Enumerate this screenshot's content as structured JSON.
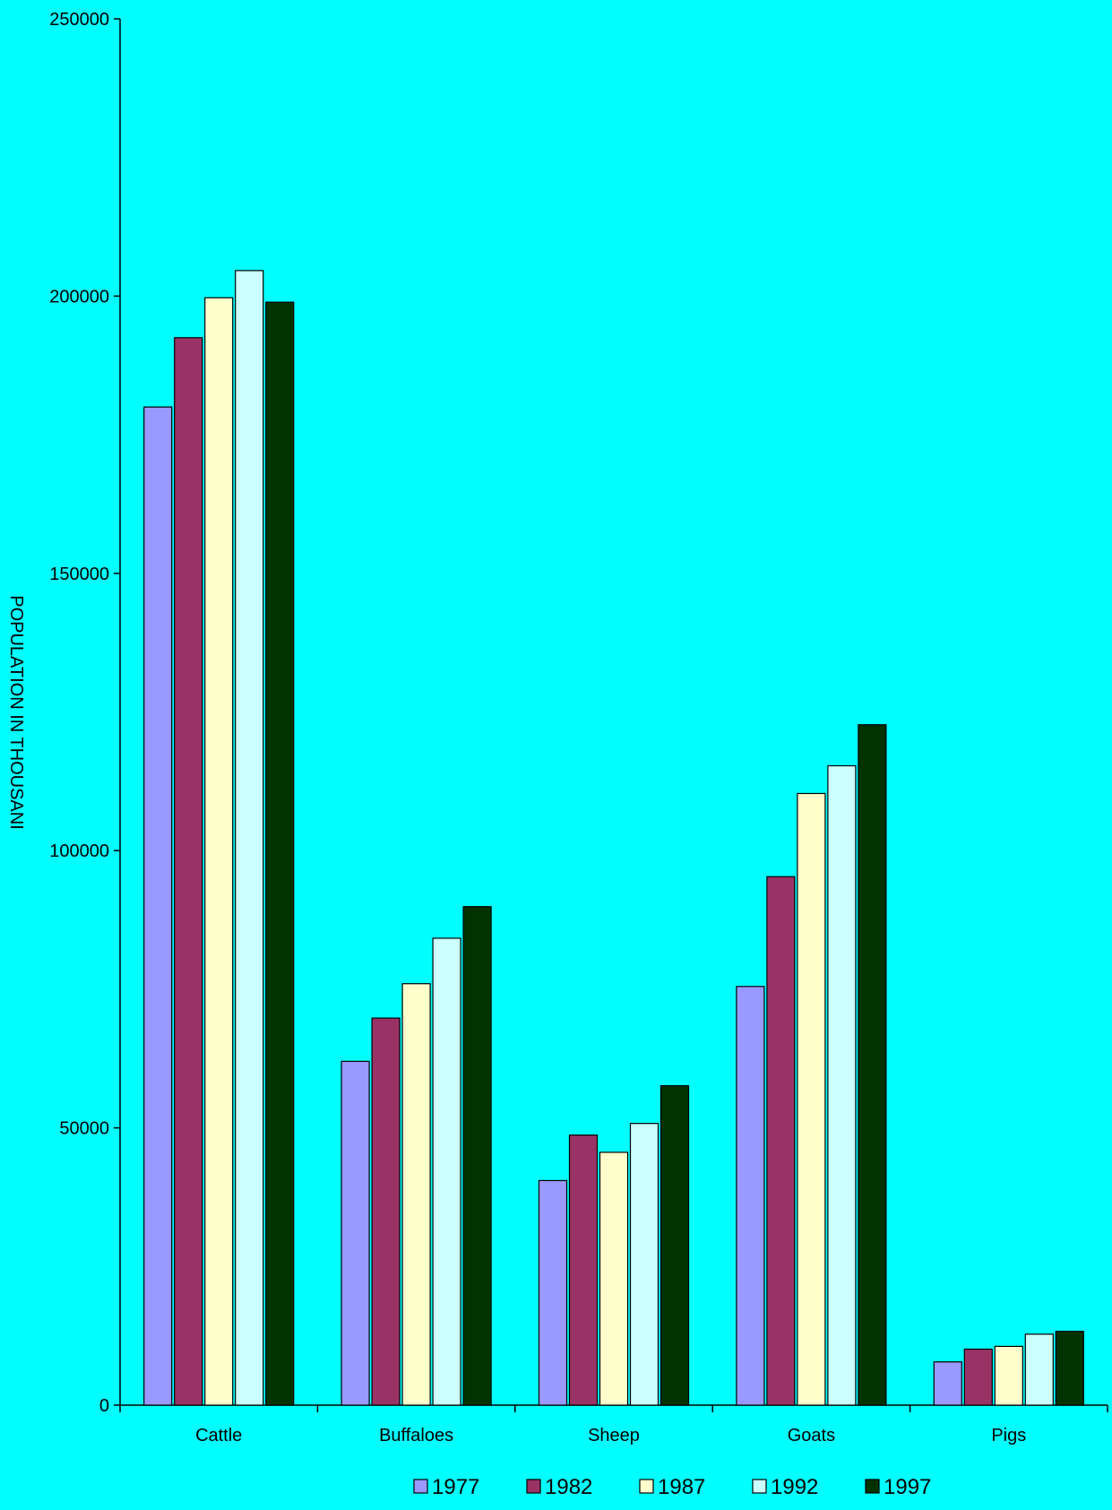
{
  "chart_data": {
    "type": "bar",
    "title": "",
    "xlabel": "",
    "ylabel": "POPULATION IN THOUSANI",
    "ylim": [
      0,
      250000
    ],
    "yticks": [
      0,
      50000,
      100000,
      150000,
      200000,
      250000
    ],
    "categories": [
      "Cattle",
      "Buffaloes",
      "Sheep",
      "Goats",
      "Pigs"
    ],
    "series": [
      {
        "name": "1977",
        "color": "#9999FF",
        "values": [
          180000,
          62000,
          40500,
          75500,
          7800
        ]
      },
      {
        "name": "1982",
        "color": "#993366",
        "values": [
          192500,
          69800,
          48700,
          95300,
          10100
        ]
      },
      {
        "name": "1987",
        "color": "#FFFFCC",
        "values": [
          199700,
          76000,
          45600,
          110300,
          10600
        ]
      },
      {
        "name": "1992",
        "color": "#CCFFFF",
        "values": [
          204600,
          84200,
          50800,
          115300,
          12800
        ]
      },
      {
        "name": "1997",
        "color": "#003300",
        "values": [
          198900,
          89900,
          57600,
          122700,
          13300
        ]
      }
    ],
    "legend_position": "bottom",
    "grid": false
  }
}
